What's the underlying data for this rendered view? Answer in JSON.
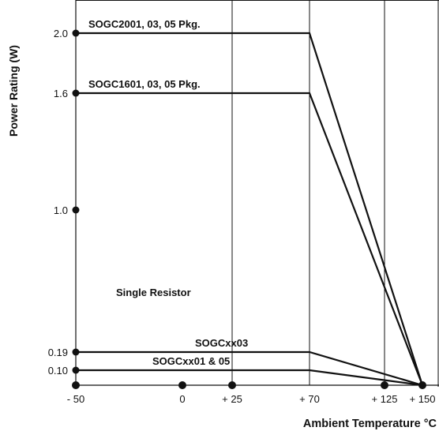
{
  "chart_data": {
    "type": "line",
    "title": "",
    "xlabel": "Ambient Temperature °C",
    "ylabel": "Power Rating (W)",
    "x_ticks": [
      {
        "value": -50,
        "label": "- 50",
        "dot": true
      },
      {
        "value": 0,
        "label": "0",
        "dot": true
      },
      {
        "value": 25,
        "label": "+ 25",
        "dot": true
      },
      {
        "value": 70,
        "label": "+ 70",
        "dot": false
      },
      {
        "value": 125,
        "label": "+ 125",
        "dot": true
      },
      {
        "value": 150,
        "label": "+ 150",
        "dot": true
      }
    ],
    "y_ticks": [
      {
        "value": 2.0,
        "label": "2.0"
      },
      {
        "value": 1.6,
        "label": "1.6"
      },
      {
        "value": 1.0,
        "label": "1.0"
      },
      {
        "value": 0.19,
        "label": "0.19"
      },
      {
        "value": 0.1,
        "label": "0.10"
      }
    ],
    "vertical_gridlines_x": [
      25,
      70,
      125
    ],
    "series": [
      {
        "name": "SOGC2001, 03, 05 Pkg.",
        "x": [
          -50,
          70,
          150
        ],
        "y": [
          2.0,
          2.0,
          0
        ],
        "label_at": -50
      },
      {
        "name": "SOGC1601, 03, 05 Pkg.",
        "x": [
          -50,
          70,
          150
        ],
        "y": [
          1.6,
          1.6,
          0
        ],
        "label_at": -50
      },
      {
        "name": "SOGCxx03",
        "x": [
          -50,
          70,
          150
        ],
        "y": [
          0.19,
          0.19,
          0
        ],
        "label_at": 0
      },
      {
        "name": "SOGCxx01 & 05",
        "x": [
          -50,
          70,
          150
        ],
        "y": [
          0.1,
          0.1,
          0
        ],
        "label_at": -20
      }
    ],
    "annotations": [
      {
        "text": "Single Resistor"
      }
    ]
  }
}
